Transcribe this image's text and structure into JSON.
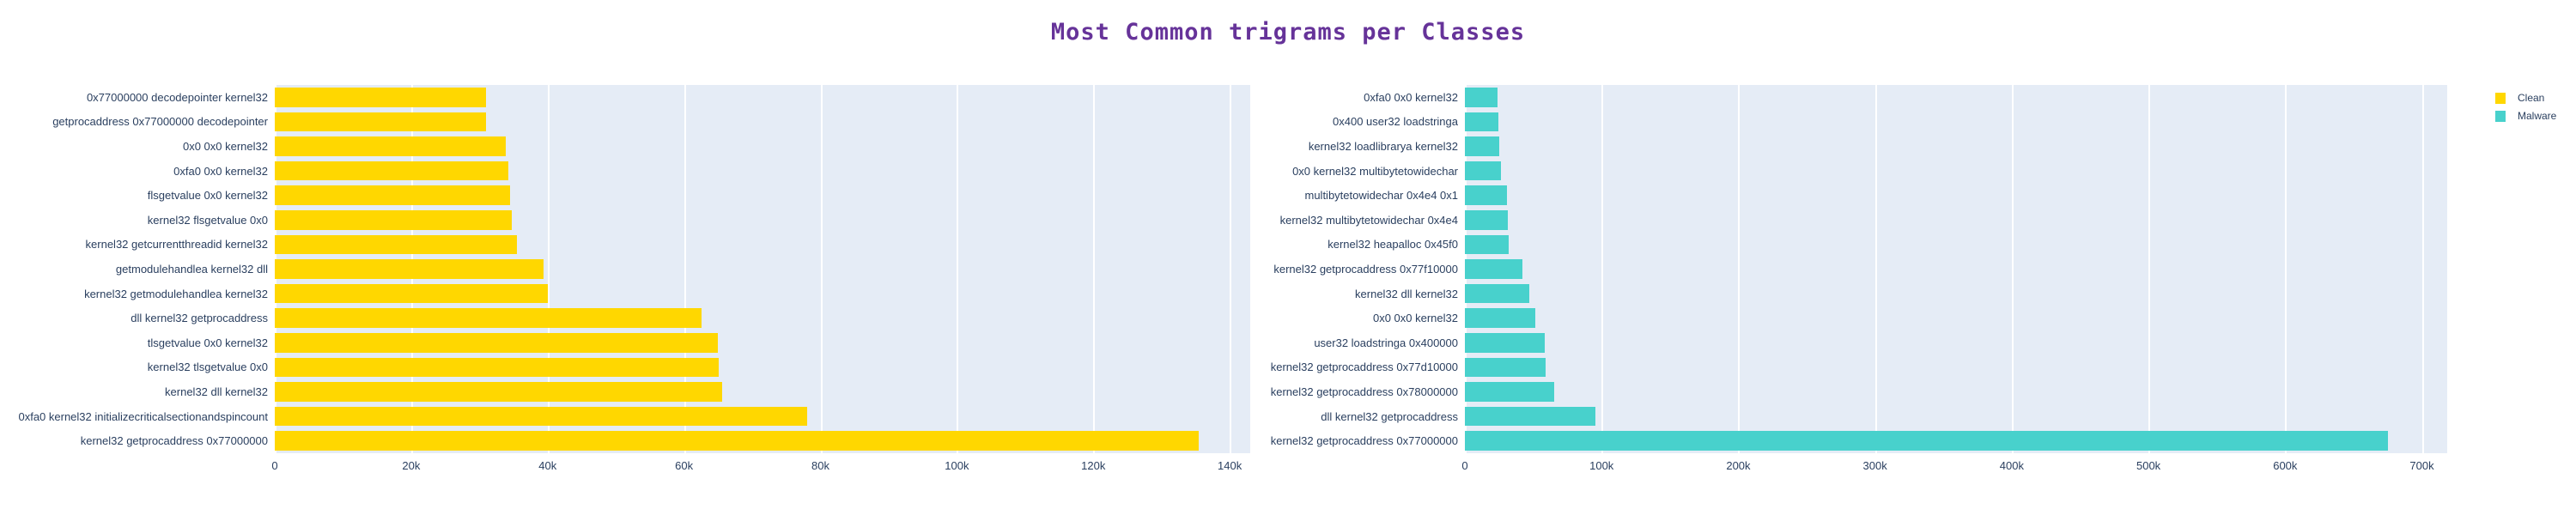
{
  "title": {
    "text": "Most Common trigrams per Classes",
    "color": "#663399"
  },
  "legend": {
    "position": "top-right",
    "items": [
      {
        "label": "Clean",
        "color": "#FFD700"
      },
      {
        "label": "Malware",
        "color": "#48D1CC"
      }
    ]
  },
  "colors": {
    "plot_background": "#E5ECF6",
    "gridline": "#ffffff",
    "axis_text": "#2a3f5f"
  },
  "chart_data": [
    {
      "type": "bar",
      "orientation": "horizontal",
      "series_name": "Clean",
      "bar_color": "#FFD700",
      "category_order": "top-to-bottom",
      "categories": [
        "0x77000000 decodepointer kernel32",
        "getprocaddress 0x77000000 decodepointer",
        "0x0 0x0 kernel32",
        "0xfa0 0x0 kernel32",
        "flsgetvalue 0x0 kernel32",
        "kernel32 flsgetvalue 0x0",
        "kernel32 getcurrentthreadid kernel32",
        "getmodulehandlea kernel32 dll",
        "kernel32 getmodulehandlea kernel32",
        "dll kernel32 getprocaddress",
        "tlsgetvalue 0x0 kernel32",
        "kernel32 tlsgetvalue 0x0",
        "kernel32 dll kernel32",
        "0xfa0 kernel32 initializecriticalsectionandspincount",
        "kernel32 getprocaddress 0x77000000"
      ],
      "values": [
        31000,
        31000,
        33900,
        34200,
        34500,
        34800,
        35500,
        39400,
        40000,
        62600,
        64900,
        65100,
        65600,
        78000,
        135500
      ],
      "xlim": [
        0,
        143000
      ],
      "grid": true,
      "xticks": [
        {
          "value": 0,
          "label": "0"
        },
        {
          "value": 20000,
          "label": "20k"
        },
        {
          "value": 40000,
          "label": "40k"
        },
        {
          "value": 60000,
          "label": "60k"
        },
        {
          "value": 80000,
          "label": "80k"
        },
        {
          "value": 100000,
          "label": "100k"
        },
        {
          "value": 120000,
          "label": "120k"
        },
        {
          "value": 140000,
          "label": "140k"
        }
      ]
    },
    {
      "type": "bar",
      "orientation": "horizontal",
      "series_name": "Malware",
      "bar_color": "#48D1CC",
      "category_order": "top-to-bottom",
      "categories": [
        "0xfa0 0x0 kernel32",
        "0x400 user32 loadstringa",
        "kernel32 loadlibrarya kernel32",
        "0x0 kernel32 multibytetowidechar",
        "multibytetowidechar 0x4e4 0x1",
        "kernel32 multibytetowidechar 0x4e4",
        "kernel32 heapalloc 0x45f0",
        "kernel32 getprocaddress 0x77f10000",
        "kernel32 dll kernel32",
        "0x0 0x0 kernel32",
        "user32 loadstringa 0x400000",
        "kernel32 getprocaddress 0x77d10000",
        "kernel32 getprocaddress 0x78000000",
        "dll kernel32 getprocaddress",
        "kernel32 getprocaddress 0x77000000"
      ],
      "values": [
        24000,
        24300,
        24900,
        26200,
        31000,
        31200,
        31800,
        42300,
        47100,
        51500,
        58400,
        59200,
        65100,
        95200,
        675000
      ],
      "xlim": [
        0,
        718500
      ],
      "grid": true,
      "xticks": [
        {
          "value": 0,
          "label": "0"
        },
        {
          "value": 100000,
          "label": "100k"
        },
        {
          "value": 200000,
          "label": "200k"
        },
        {
          "value": 300000,
          "label": "300k"
        },
        {
          "value": 400000,
          "label": "400k"
        },
        {
          "value": 500000,
          "label": "500k"
        },
        {
          "value": 600000,
          "label": "600k"
        },
        {
          "value": 700000,
          "label": "700k"
        }
      ]
    }
  ]
}
